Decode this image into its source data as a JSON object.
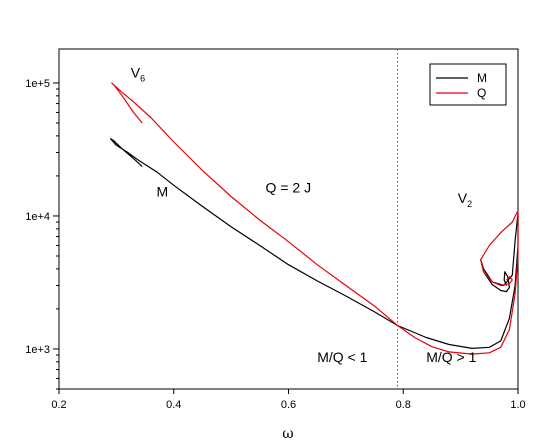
{
  "chart_data": {
    "type": "line",
    "title": "",
    "xlabel": "ω",
    "ylabel": "",
    "xlim": [
      0.2,
      1.0
    ],
    "ylim": [
      500,
      180000
    ],
    "y_scale": "log",
    "grid": false,
    "legend_position": "top-right",
    "x_ticks": [
      0.2,
      0.4,
      0.6,
      0.8,
      1.0
    ],
    "x_tick_labels": [
      "0.2",
      "0.4",
      "0.6",
      "0.8",
      "1.0"
    ],
    "y_ticks": [
      1000,
      10000,
      100000
    ],
    "y_tick_labels": [
      "1e+3",
      "1e+4",
      "1e+5"
    ],
    "reference_lines": [
      {
        "axis": "x",
        "value": 0.79,
        "style": "dotted"
      }
    ],
    "series": [
      {
        "name": "M",
        "color": "#000000",
        "points": [
          [
            0.345,
            23500
          ],
          [
            0.33,
            27000
          ],
          [
            0.31,
            32000
          ],
          [
            0.295,
            37000
          ],
          [
            0.29,
            38000
          ],
          [
            0.3,
            34000
          ],
          [
            0.32,
            30000
          ],
          [
            0.34,
            26000
          ],
          [
            0.37,
            21500
          ],
          [
            0.4,
            17000
          ],
          [
            0.45,
            11800
          ],
          [
            0.5,
            8300
          ],
          [
            0.55,
            6000
          ],
          [
            0.6,
            4300
          ],
          [
            0.65,
            3250
          ],
          [
            0.7,
            2500
          ],
          [
            0.75,
            1900
          ],
          [
            0.79,
            1500
          ],
          [
            0.84,
            1220
          ],
          [
            0.88,
            1080
          ],
          [
            0.92,
            1010
          ],
          [
            0.95,
            1030
          ],
          [
            0.97,
            1150
          ],
          [
            0.985,
            1700
          ],
          [
            0.995,
            3000
          ],
          [
            1.0,
            6000
          ],
          [
            1.0,
            10500
          ],
          [
            0.995,
            6500
          ],
          [
            0.99,
            3600
          ],
          [
            0.975,
            3000
          ],
          [
            0.955,
            3200
          ],
          [
            0.94,
            4000
          ],
          [
            0.935,
            4700
          ],
          [
            0.94,
            3800
          ],
          [
            0.955,
            3050
          ],
          [
            0.97,
            2750
          ],
          [
            0.98,
            2700
          ],
          [
            0.985,
            2900
          ],
          [
            0.982,
            3500
          ],
          [
            0.977,
            3800
          ],
          [
            0.976,
            3300
          ],
          [
            0.98,
            3000
          ]
        ]
      },
      {
        "name": "Q",
        "color": "#e8000b",
        "points": [
          [
            0.345,
            50000
          ],
          [
            0.33,
            60000
          ],
          [
            0.31,
            80000
          ],
          [
            0.297,
            95000
          ],
          [
            0.292,
            100000
          ],
          [
            0.295,
            97000
          ],
          [
            0.31,
            85000
          ],
          [
            0.33,
            72000
          ],
          [
            0.36,
            55000
          ],
          [
            0.4,
            36000
          ],
          [
            0.45,
            22000
          ],
          [
            0.5,
            14000
          ],
          [
            0.55,
            9300
          ],
          [
            0.6,
            6400
          ],
          [
            0.65,
            4300
          ],
          [
            0.7,
            3000
          ],
          [
            0.75,
            2100
          ],
          [
            0.79,
            1500
          ],
          [
            0.82,
            1220
          ],
          [
            0.85,
            1040
          ],
          [
            0.88,
            950
          ],
          [
            0.92,
            915
          ],
          [
            0.95,
            935
          ],
          [
            0.97,
            1030
          ],
          [
            0.985,
            1400
          ],
          [
            0.995,
            2600
          ],
          [
            1.0,
            5000
          ],
          [
            1.0,
            11000
          ],
          [
            0.99,
            9000
          ],
          [
            0.97,
            7500
          ],
          [
            0.95,
            6000
          ],
          [
            0.935,
            4700
          ],
          [
            0.94,
            3800
          ],
          [
            0.955,
            3200
          ],
          [
            0.97,
            3000
          ],
          [
            0.985,
            3100
          ],
          [
            0.99,
            3300
          ],
          [
            0.986,
            3500
          ],
          [
            0.98,
            3300
          ]
        ]
      }
    ],
    "annotations": [
      {
        "text": "V",
        "sub": "6",
        "x": 0.325,
        "y": 110000
      },
      {
        "text": "M",
        "x": 0.37,
        "y": 14000
      },
      {
        "text": "Q = 2 J",
        "x": 0.56,
        "y": 15000
      },
      {
        "text": "V",
        "sub": "2",
        "x": 0.895,
        "y": 12500
      },
      {
        "text": "M/Q < 1",
        "x": 0.65,
        "y": 800
      },
      {
        "text": "M/Q > 1",
        "x": 0.84,
        "y": 800
      }
    ]
  }
}
